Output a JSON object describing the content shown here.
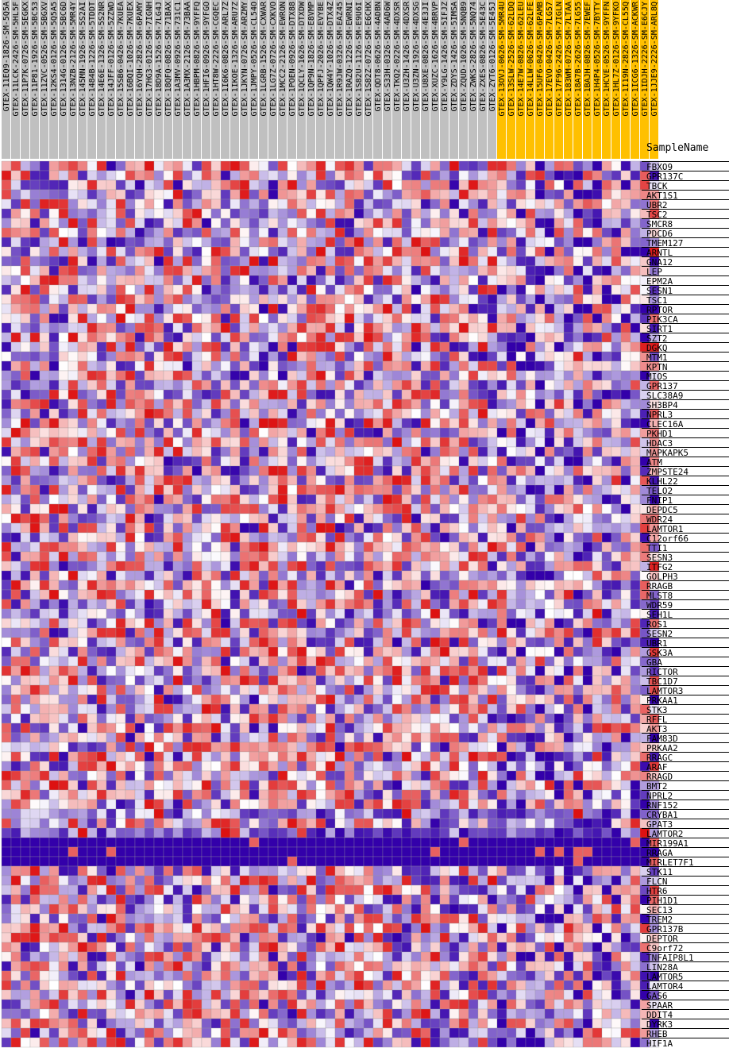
{
  "chart_data": {
    "type": "heatmap",
    "title": "",
    "column_header_label": "SampleName",
    "colors": {
      "low": "#3300aa",
      "mid": "#ffffff",
      "high": "#dd1111",
      "label_bg_group1": "#c0c0c0",
      "label_bg_group2": "#ffc000",
      "grid": "#999999"
    },
    "value_range": [
      -3,
      3
    ],
    "samples": [
      {
        "name": "GTEX-11EQ9-1826-SM-5Q5A",
        "group": 1
      },
      {
        "name": "GTEX-11LCK-2426-SM-5HL5F",
        "group": 1
      },
      {
        "name": "GTEX-11P7K-0726-SM-5EGKX",
        "group": 1
      },
      {
        "name": "GTEX-11P81-1926-SM-5BC53",
        "group": 1
      },
      {
        "name": "GTEX-11ZVC-0526-SM-5BGXV",
        "group": 1
      },
      {
        "name": "GTEX-12KS4-0126-SM-5Q5A5",
        "group": 1
      },
      {
        "name": "GTEX-1314G-0126-SM-5BC6D",
        "group": 1
      },
      {
        "name": "GTEX-13NZB-2126-SM-5MR4Y",
        "group": 1
      },
      {
        "name": "GTEX-145MN-1926-SM-5S2AI",
        "group": 1
      },
      {
        "name": "GTEX-1484B-1226-SM-5TDDT",
        "group": 1
      },
      {
        "name": "GTEX-14E6E-1326-SM-5S2NR",
        "group": 1
      },
      {
        "name": "GTEX-14JFF-0126-SM-5ZZWD",
        "group": 1
      },
      {
        "name": "GTEX-15SB6-0426-SM-7KUEA",
        "group": 1
      },
      {
        "name": "GTEX-16BQI-1026-SM-7KUEX",
        "group": 1
      },
      {
        "name": "GTEX-16YQH-2826-SM-6PAMY",
        "group": 1
      },
      {
        "name": "GTEX-17HG3-0126-SM-7IGNH",
        "group": 1
      },
      {
        "name": "GTEX-18D9A-1526-SM-7LG4J",
        "group": 1
      },
      {
        "name": "GTEX-18QFQ-0826-SM-71BAX",
        "group": 1
      },
      {
        "name": "GTEX-1A3MV-0926-SM-731C1",
        "group": 1
      },
      {
        "name": "GTEX-1A3MX-2126-SM-73BAA",
        "group": 1
      },
      {
        "name": "GTEX-1HBPM-0826-SM-9YFFQ",
        "group": 1
      },
      {
        "name": "GTEX-1HFI6-0926-SM-9YFGO",
        "group": 1
      },
      {
        "name": "GTEX-1HT8W-2226-SM-CGQEC",
        "group": 1
      },
      {
        "name": "GTEX-1I6K6-0826-SM-ARL7Z",
        "group": 1
      },
      {
        "name": "GTEX-1IKOE-1326-SM-ARU7Z",
        "group": 1
      },
      {
        "name": "GTEX-1JKYN-0726-SM-ARZMY",
        "group": 1
      },
      {
        "name": "GTEX-1JMPY-0526-SM-CL54O",
        "group": 1
      },
      {
        "name": "GTEX-1LGRB-1526-SM-CXWAR",
        "group": 1
      },
      {
        "name": "GTEX-1LG7Z-0726-SM-CXKVO",
        "group": 1
      },
      {
        "name": "GTEX-1MCC2-2126-SM-EWRON",
        "group": 1
      },
      {
        "name": "GTEX-1POEN-0926-SM-DTX88",
        "group": 1
      },
      {
        "name": "GTEX-1QCLY-1626-SM-DTXDW",
        "group": 1
      },
      {
        "name": "GTEX-1QP9N-1826-SM-E8VMP",
        "group": 1
      },
      {
        "name": "GTEX-1QPFJ-2026-SM-EVYBE",
        "group": 1
      },
      {
        "name": "GTEX-1QW4Y-1026-SM-DTX4Z",
        "group": 1
      },
      {
        "name": "GTEX-1R9JW-0326-SM-EAZ45",
        "group": 1
      },
      {
        "name": "GTEX-1RAZQ-1226-SM-EWRNI",
        "group": 1
      },
      {
        "name": "GTEX-1S82U-1126-SM-E9U6I",
        "group": 1
      },
      {
        "name": "GTEX-1S82Z-0726-SM-E6CHX",
        "group": 1
      },
      {
        "name": "GTEX-QDT8-0626-SM-4ADBN",
        "group": 1
      },
      {
        "name": "GTEX-S33H-0326-SM-4AD6W",
        "group": 1
      },
      {
        "name": "GTEX-TKQ2-0226-SM-4DXSR",
        "group": 1
      },
      {
        "name": "GTEX-U3ZH-1426-SM-4DXSR",
        "group": 1
      },
      {
        "name": "GTEX-U3ZN-1926-SM-4DXSG",
        "group": 1
      },
      {
        "name": "GTEX-U8XE-0826-SM-4E3JI",
        "group": 1
      },
      {
        "name": "GTEX-XUZC-1626-SM-4BRVP",
        "group": 1
      },
      {
        "name": "GTEX-Y9LG-1426-SM-5IFJZ",
        "group": 1
      },
      {
        "name": "GTEX-ZDYS-1426-SM-5IMSA",
        "group": 1
      },
      {
        "name": "GTEX-ZQUD-1026-SM-5NQB9",
        "group": 1
      },
      {
        "name": "GTEX-ZWKS-2826-SM-5NQ74",
        "group": 1
      },
      {
        "name": "GTEX-ZXES-0826-SM-5E43C",
        "group": 1
      },
      {
        "name": "GTEX-ZYT6-0126-SM-5E45J",
        "group": 1
      },
      {
        "name": "GTEX-13OVJ-0626-SM-5MR4U",
        "group": 2
      },
      {
        "name": "GTEX-13SLW-2526-SM-62LDQ",
        "group": 2
      },
      {
        "name": "GTEX-14E7W-0826-SM-62LEU",
        "group": 2
      },
      {
        "name": "GTEX-14LLW-0626-SM-62LFE",
        "group": 2
      },
      {
        "name": "GTEX-15UF6-0426-SM-6PAMB",
        "group": 2
      },
      {
        "name": "GTEX-17EVO-0426-SM-7LG57",
        "group": 2
      },
      {
        "name": "GTEX-17F96-2426-SM-7IGLN",
        "group": 2
      },
      {
        "name": "GTEX-183WM-0726-SM-7LTAA",
        "group": 2
      },
      {
        "name": "GTEX-18A7B-2626-SM-7LG55",
        "group": 2
      },
      {
        "name": "GTEX-1BAJH-0826-SM-7EWEF",
        "group": 2
      },
      {
        "name": "GTEX-1H4P4-0526-SM-7BYTY",
        "group": 2
      },
      {
        "name": "GTEX-1HCVE-0526-SM-9YFFN",
        "group": 2
      },
      {
        "name": "GTEX-1HL7Z-0126-SM-9YFKO",
        "group": 2
      },
      {
        "name": "GTEX-1I19N-2826-SM-CL55Q",
        "group": 2
      },
      {
        "name": "GTEX-1ICG6-1326-SM-ACKWR",
        "group": 2
      },
      {
        "name": "GTEX-1IDJH-2226-SM-E6CJY",
        "group": 2
      },
      {
        "name": "GTEX-1JJE9-2226-SM-ARL8Q",
        "group": 2
      }
    ],
    "genes": [
      "FBXO9",
      "GPR137C",
      "TBCK",
      "AKT1S1",
      "UBR2",
      "TSC2",
      "SMCR8",
      "PDCD6",
      "TMEM127",
      "ARNTL",
      "GNA12",
      "LEP",
      "EPM2A",
      "SESN1",
      "TSC1",
      "RPTOR",
      "PIK3CA",
      "SIRT1",
      "SZT2",
      "DGKQ",
      "MTM1",
      "KPTN",
      "MIOS",
      "GPR137",
      "SLC38A9",
      "SH3BP4",
      "NPRL3",
      "CLEC16A",
      "PKHD1",
      "HDAC3",
      "MAPKAPK5",
      "ATM",
      "ZMPSTE24",
      "KLHL22",
      "TELO2",
      "FNIP1",
      "DEPDC5",
      "WDR24",
      "LAMTOR1",
      "C12orf66",
      "TTI1",
      "SESN3",
      "ITFG2",
      "GOLPH3",
      "RRAGB",
      "MLST8",
      "WDR59",
      "SEH1L",
      "ROS1",
      "SESN2",
      "UBR1",
      "GSK3A",
      "GBA",
      "RICTOR",
      "TBC1D7",
      "LAMTOR3",
      "PRKAA1",
      "STK3",
      "RFFL",
      "AKT3",
      "FAM83D",
      "PRKAA2",
      "RRAGC",
      "ARAF",
      "RRAGD",
      "BMT2",
      "NPRL2",
      "RNF152",
      "CRYBA1",
      "GPAT3",
      "LAMTOR2",
      "MIR199A1",
      "RRAGA",
      "MIRLET7F1",
      "STK11",
      "FLCN",
      "HTR6",
      "PIH1D1",
      "SEC13",
      "TREM2",
      "GPR137B",
      "DEPTOR",
      "C9orf72",
      "TNFAIP8L1",
      "LIN28A",
      "LAMTOR5",
      "LAMTOR4",
      "GAS6",
      "SPAAR",
      "DDIT4",
      "DYRK3",
      "RHEB",
      "HIF1A"
    ]
  }
}
